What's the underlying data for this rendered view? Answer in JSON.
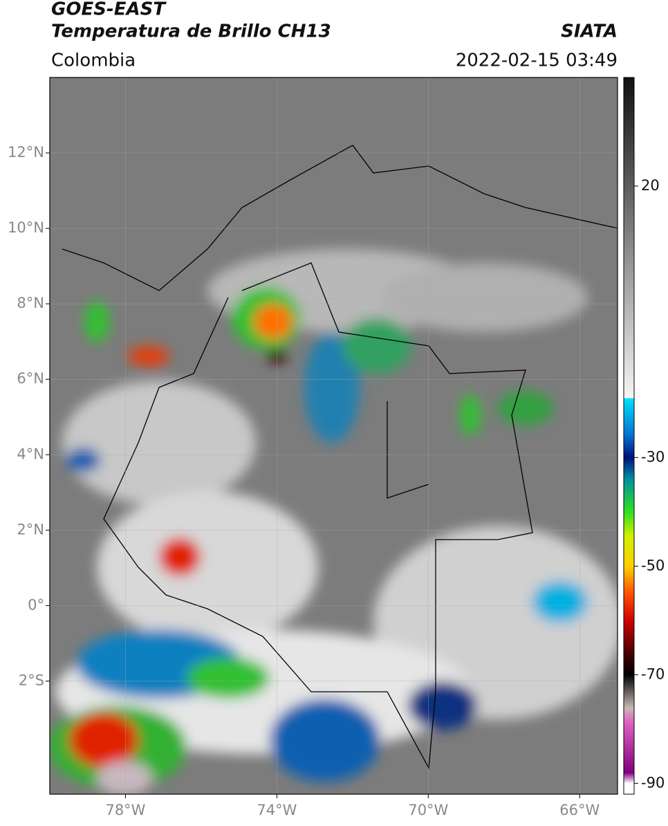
{
  "header": {
    "title": "GOES-EAST",
    "subtitle": "Temperatura de Brillo CH13",
    "source": "SIATA",
    "region": "Colombia",
    "datetime": "2022-02-15 03:49"
  },
  "map": {
    "xlim": [
      -80,
      -65
    ],
    "ylim": [
      -5,
      14
    ],
    "xticks": [
      {
        "value": -78,
        "label": "78°W"
      },
      {
        "value": -74,
        "label": "74°W"
      },
      {
        "value": -70,
        "label": "70°W"
      },
      {
        "value": -66,
        "label": "66°W"
      }
    ],
    "yticks": [
      {
        "value": 12,
        "label": "12°N"
      },
      {
        "value": 10,
        "label": "10°N"
      },
      {
        "value": 8,
        "label": "8°N"
      },
      {
        "value": 6,
        "label": "6°N"
      },
      {
        "value": 4,
        "label": "4°N"
      },
      {
        "value": 2,
        "label": "2°N"
      },
      {
        "value": 0,
        "label": "0°"
      },
      {
        "value": -2,
        "label": "2°S"
      }
    ],
    "grid": true
  },
  "colorbar": {
    "lim": [
      -92,
      40
    ],
    "ticks": [
      20,
      -30,
      -50,
      -70,
      -90
    ]
  }
}
